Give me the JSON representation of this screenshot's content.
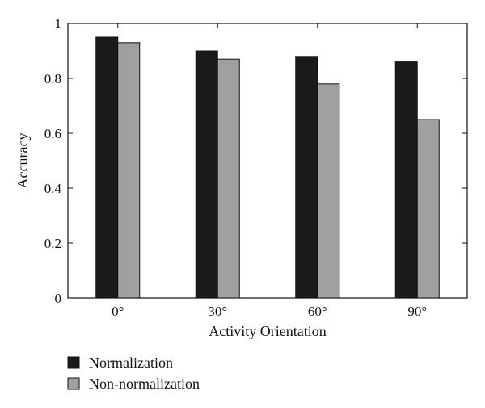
{
  "chart_data": {
    "type": "bar",
    "title": "",
    "xlabel": "Activity Orientation",
    "ylabel": "Accuracy",
    "categories": [
      "0°",
      "30°",
      "60°",
      "90°"
    ],
    "series": [
      {
        "name": "Normalization",
        "values": [
          0.95,
          0.9,
          0.88,
          0.86
        ],
        "color": "#1a1a1a"
      },
      {
        "name": "Non-normalization",
        "values": [
          0.93,
          0.87,
          0.78,
          0.65
        ],
        "color": "#a0a0a0"
      }
    ],
    "ylim": [
      0,
      1
    ],
    "yticks": [
      0,
      0.2,
      0.4,
      0.6,
      0.8,
      1
    ],
    "ytick_labels": [
      "0",
      "0.2",
      "0.4",
      "0.6",
      "0.8",
      "1"
    ],
    "grid": false,
    "legend_position": "bottom-left"
  }
}
